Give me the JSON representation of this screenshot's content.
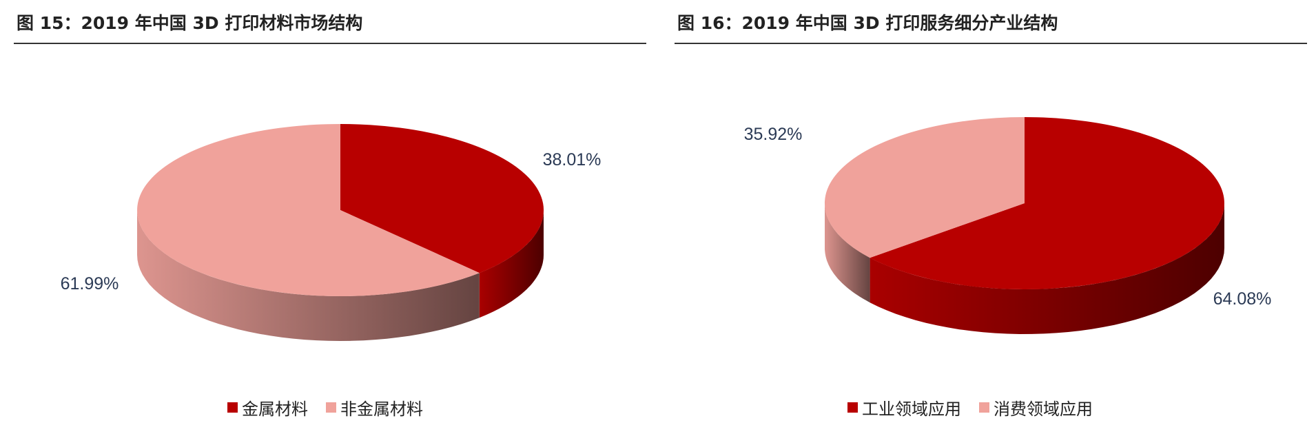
{
  "panels": [
    {
      "title": "图 15：2019 年中国 3D 打印材料市场结构",
      "legend": [
        {
          "label": "金属材料",
          "color": "#b80000"
        },
        {
          "label": "非金属材料",
          "color": "#f0a29b"
        }
      ],
      "labels": [
        "38.01%",
        "61.99%"
      ]
    },
    {
      "title": "图 16：2019 年中国 3D 打印服务细分产业结构",
      "legend": [
        {
          "label": "工业领域应用",
          "color": "#b80000"
        },
        {
          "label": "消费领域应用",
          "color": "#f0a29b"
        }
      ],
      "labels": [
        "64.08%",
        "35.92%"
      ]
    }
  ],
  "chart_data": [
    {
      "type": "pie",
      "title": "图 15：2019 年中国 3D 打印材料市场结构",
      "categories": [
        "金属材料",
        "非金属材料"
      ],
      "values": [
        38.01,
        61.99
      ],
      "colors": [
        "#b80000",
        "#f0a29b"
      ],
      "legend": "bottom"
    },
    {
      "type": "pie",
      "title": "图 16：2019 年中国 3D 打印服务细分产业结构",
      "categories": [
        "工业领域应用",
        "消费领域应用"
      ],
      "values": [
        64.08,
        35.92
      ],
      "colors": [
        "#b80000",
        "#f0a29b"
      ],
      "legend": "bottom"
    }
  ]
}
